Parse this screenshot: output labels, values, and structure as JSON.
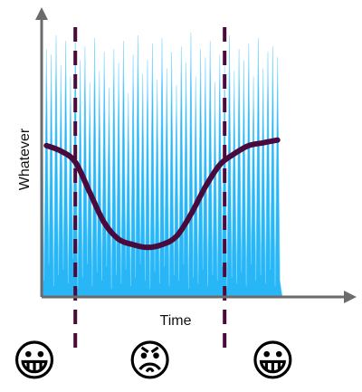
{
  "chart_data": {
    "type": "area",
    "xlabel": "Time",
    "ylabel": "Whatever",
    "xlim": [
      0,
      100
    ],
    "ylim": [
      0,
      100
    ],
    "grid": false,
    "noise_series": {
      "color": "#29B6F6",
      "x": [
        0,
        1,
        2,
        3,
        4,
        5,
        6,
        7,
        8,
        9,
        10,
        11,
        12,
        13,
        14,
        15,
        16,
        17,
        18,
        19,
        20,
        21,
        22,
        23,
        24,
        25,
        26,
        27,
        28,
        29,
        30,
        31,
        32,
        33,
        34,
        35,
        36,
        37,
        38,
        39,
        40,
        41,
        42,
        43,
        44,
        45,
        46,
        47,
        48,
        49,
        50,
        51,
        52,
        53,
        54,
        55,
        56,
        57,
        58,
        59,
        60,
        61,
        62,
        63,
        64,
        65,
        66,
        67,
        68,
        69,
        70,
        71,
        72,
        73,
        74,
        75,
        76,
        77,
        78,
        79,
        80,
        81,
        82,
        83,
        84,
        85,
        86,
        87,
        88,
        89,
        90,
        91,
        92,
        93,
        94,
        95,
        96,
        97,
        98,
        99,
        100
      ],
      "values": [
        92,
        6,
        90,
        12,
        88,
        4,
        95,
        8,
        84,
        10,
        93,
        5,
        80,
        14,
        96,
        3,
        86,
        7,
        91,
        12,
        78,
        4,
        94,
        9,
        82,
        6,
        89,
        11,
        76,
        3,
        90,
        8,
        85,
        5,
        93,
        10,
        74,
        4,
        88,
        7,
        95,
        12,
        81,
        6,
        86,
        3,
        92,
        9,
        79,
        5,
        94,
        11,
        83,
        4,
        89,
        8,
        77,
        6,
        91,
        12,
        85,
        3,
        96,
        7,
        80,
        5,
        90,
        10,
        87,
        4,
        93,
        8,
        78,
        6,
        88,
        11,
        84,
        3,
        95,
        7,
        82,
        5,
        90,
        9,
        86,
        4,
        92,
        12,
        80,
        6,
        94,
        8,
        83,
        5,
        89,
        10,
        91,
        4,
        87,
        6,
        0
      ]
    },
    "smooth_series": {
      "color": "#4A0A3C",
      "x": [
        2,
        8,
        14,
        20,
        26,
        32,
        38,
        44,
        50,
        56,
        62,
        68,
        74,
        80,
        86,
        92,
        98
      ],
      "values": [
        55,
        53,
        49,
        38,
        27,
        21,
        19,
        18,
        19,
        22,
        30,
        40,
        48,
        52,
        55,
        56,
        57
      ]
    },
    "vertical_lines": {
      "color": "#4A0A3C",
      "x": [
        14,
        76
      ]
    },
    "emoji_annotations": [
      "😀",
      "😡",
      "😀"
    ]
  }
}
